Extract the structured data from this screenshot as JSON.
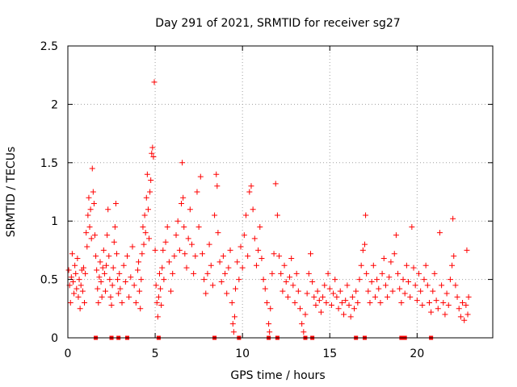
{
  "chart_data": {
    "type": "scatter",
    "title": "Day 291 of 2021, SRMTID for receiver sg27",
    "xlabel": "GPS time / hours",
    "ylabel": "SRMTID / TECUs",
    "xlim": [
      0,
      24.333
    ],
    "ylim": [
      0,
      2.5
    ],
    "x_ticks": [
      0,
      5,
      10,
      15,
      20
    ],
    "x_tick_labels": [
      "0",
      "5",
      "10",
      "15",
      "20"
    ],
    "y_ticks": [
      0,
      0.5,
      1,
      1.5,
      2,
      2.5
    ],
    "y_tick_labels": [
      "0",
      "0.5",
      "1",
      "1.5",
      "2",
      "2.5"
    ],
    "grid": true,
    "series": [
      {
        "name": "SRMTID",
        "marker": "plus",
        "color": "#ff0000",
        "points": [
          [
            0.05,
            0.58
          ],
          [
            0.1,
            0.45
          ],
          [
            0.15,
            0.3
          ],
          [
            0.2,
            0.52
          ],
          [
            0.25,
            0.72
          ],
          [
            0.3,
            0.48
          ],
          [
            0.35,
            0.38
          ],
          [
            0.4,
            0.62
          ],
          [
            0.45,
            0.55
          ],
          [
            0.5,
            0.42
          ],
          [
            0.55,
            0.68
          ],
          [
            0.6,
            0.35
          ],
          [
            0.65,
            0.5
          ],
          [
            0.7,
            0.25
          ],
          [
            0.75,
            0.45
          ],
          [
            0.8,
            0.58
          ],
          [
            0.85,
            0.4
          ],
          [
            0.9,
            0.6
          ],
          [
            0.95,
            0.3
          ],
          [
            1.0,
            0.55
          ],
          [
            1.05,
            0.9
          ],
          [
            1.1,
            0.78
          ],
          [
            1.15,
            1.05
          ],
          [
            1.2,
            1.2
          ],
          [
            1.25,
            0.95
          ],
          [
            1.3,
            1.1
          ],
          [
            1.35,
            0.85
          ],
          [
            1.4,
            1.45
          ],
          [
            1.45,
            1.25
          ],
          [
            1.5,
            1.15
          ],
          [
            1.55,
            0.88
          ],
          [
            1.6,
            0.7
          ],
          [
            1.65,
            0.58
          ],
          [
            1.7,
            0.42
          ],
          [
            1.75,
            0.3
          ],
          [
            1.8,
            0.52
          ],
          [
            1.85,
            0.65
          ],
          [
            1.9,
            0.48
          ],
          [
            1.95,
            0.35
          ],
          [
            2.0,
            0.6
          ],
          [
            2.05,
            0.75
          ],
          [
            2.1,
            0.55
          ],
          [
            2.15,
            0.4
          ],
          [
            2.2,
            0.62
          ],
          [
            2.25,
            0.88
          ],
          [
            2.3,
            1.1
          ],
          [
            2.35,
            0.7
          ],
          [
            2.4,
            0.5
          ],
          [
            2.45,
            0.35
          ],
          [
            2.5,
            0.28
          ],
          [
            2.55,
            0.45
          ],
          [
            2.6,
            0.6
          ],
          [
            2.65,
            0.82
          ],
          [
            2.7,
            0.95
          ],
          [
            2.75,
            1.15
          ],
          [
            2.8,
            0.72
          ],
          [
            2.85,
            0.5
          ],
          [
            2.9,
            0.38
          ],
          [
            2.95,
            0.55
          ],
          [
            3.0,
            0.42
          ],
          [
            3.1,
            0.3
          ],
          [
            3.2,
            0.62
          ],
          [
            3.3,
            0.48
          ],
          [
            3.4,
            0.7
          ],
          [
            3.5,
            0.35
          ],
          [
            3.6,
            0.52
          ],
          [
            3.7,
            0.78
          ],
          [
            3.8,
            0.45
          ],
          [
            3.9,
            0.3
          ],
          [
            4.0,
            0.58
          ],
          [
            4.05,
            0.65
          ],
          [
            4.1,
            0.4
          ],
          [
            4.15,
            0.25
          ],
          [
            4.2,
            0.5
          ],
          [
            4.25,
            0.72
          ],
          [
            4.3,
            0.95
          ],
          [
            4.35,
            0.8
          ],
          [
            4.4,
            1.05
          ],
          [
            4.45,
            0.9
          ],
          [
            4.5,
            1.2
          ],
          [
            4.55,
            1.4
          ],
          [
            4.6,
            1.1
          ],
          [
            4.65,
            0.85
          ],
          [
            4.7,
            1.25
          ],
          [
            4.75,
            1.35
          ],
          [
            4.8,
            1.58
          ],
          [
            4.85,
            1.63
          ],
          [
            4.9,
            1.55
          ],
          [
            4.95,
            2.19
          ],
          [
            5.0,
            0.75
          ],
          [
            5.05,
            0.45
          ],
          [
            5.1,
            0.3
          ],
          [
            5.15,
            0.18
          ],
          [
            5.2,
            0.35
          ],
          [
            5.25,
            0.55
          ],
          [
            5.3,
            0.42
          ],
          [
            5.35,
            0.28
          ],
          [
            5.4,
            0.6
          ],
          [
            5.45,
            0.75
          ],
          [
            5.5,
            0.5
          ],
          [
            5.6,
            0.82
          ],
          [
            5.7,
            0.95
          ],
          [
            5.8,
            0.65
          ],
          [
            5.9,
            0.4
          ],
          [
            6.0,
            0.55
          ],
          [
            6.1,
            0.7
          ],
          [
            6.2,
            0.88
          ],
          [
            6.3,
            1.0
          ],
          [
            6.4,
            0.75
          ],
          [
            6.5,
            1.15
          ],
          [
            6.55,
            1.5
          ],
          [
            6.6,
            1.2
          ],
          [
            6.65,
            0.95
          ],
          [
            6.7,
            0.72
          ],
          [
            6.8,
            0.6
          ],
          [
            6.9,
            0.85
          ],
          [
            7.0,
            1.1
          ],
          [
            7.1,
            0.8
          ],
          [
            7.2,
            0.55
          ],
          [
            7.3,
            0.7
          ],
          [
            7.4,
            1.25
          ],
          [
            7.5,
            0.95
          ],
          [
            7.6,
            1.38
          ],
          [
            7.7,
            0.72
          ],
          [
            7.8,
            0.5
          ],
          [
            7.9,
            0.38
          ],
          [
            8.0,
            0.55
          ],
          [
            8.1,
            0.8
          ],
          [
            8.2,
            0.62
          ],
          [
            8.3,
            0.45
          ],
          [
            8.4,
            1.05
          ],
          [
            8.5,
            1.4
          ],
          [
            8.55,
            1.3
          ],
          [
            8.6,
            0.9
          ],
          [
            8.7,
            0.65
          ],
          [
            8.8,
            0.48
          ],
          [
            8.9,
            0.7
          ],
          [
            9.0,
            0.55
          ],
          [
            9.1,
            0.38
          ],
          [
            9.2,
            0.6
          ],
          [
            9.3,
            0.75
          ],
          [
            9.4,
            0.3
          ],
          [
            9.45,
            0.12
          ],
          [
            9.5,
            0.05
          ],
          [
            9.55,
            0.18
          ],
          [
            9.6,
            0.42
          ],
          [
            9.7,
            0.65
          ],
          [
            9.8,
            0.5
          ],
          [
            9.9,
            0.78
          ],
          [
            10.0,
            0.6
          ],
          [
            10.1,
            0.88
          ],
          [
            10.2,
            1.05
          ],
          [
            10.3,
            0.7
          ],
          [
            10.4,
            1.25
          ],
          [
            10.5,
            1.3
          ],
          [
            10.6,
            1.1
          ],
          [
            10.7,
            0.85
          ],
          [
            10.8,
            0.62
          ],
          [
            10.9,
            0.75
          ],
          [
            11.0,
            0.95
          ],
          [
            11.1,
            0.68
          ],
          [
            11.2,
            0.5
          ],
          [
            11.3,
            0.42
          ],
          [
            11.4,
            0.3
          ],
          [
            11.5,
            0.12
          ],
          [
            11.55,
            0.05
          ],
          [
            11.6,
            0.25
          ],
          [
            11.7,
            0.55
          ],
          [
            11.8,
            0.72
          ],
          [
            11.9,
            1.32
          ],
          [
            12.0,
            1.05
          ],
          [
            12.1,
            0.7
          ],
          [
            12.2,
            0.55
          ],
          [
            12.3,
            0.4
          ],
          [
            12.4,
            0.62
          ],
          [
            12.5,
            0.48
          ],
          [
            12.6,
            0.35
          ],
          [
            12.7,
            0.52
          ],
          [
            12.8,
            0.68
          ],
          [
            12.9,
            0.45
          ],
          [
            13.0,
            0.3
          ],
          [
            13.1,
            0.55
          ],
          [
            13.2,
            0.4
          ],
          [
            13.3,
            0.25
          ],
          [
            13.4,
            0.12
          ],
          [
            13.5,
            0.05
          ],
          [
            13.6,
            0.2
          ],
          [
            13.7,
            0.38
          ],
          [
            13.8,
            0.55
          ],
          [
            13.9,
            0.72
          ],
          [
            14.0,
            0.48
          ],
          [
            14.1,
            0.35
          ],
          [
            14.2,
            0.28
          ],
          [
            14.3,
            0.4
          ],
          [
            14.4,
            0.32
          ],
          [
            14.5,
            0.22
          ],
          [
            14.6,
            0.35
          ],
          [
            14.7,
            0.45
          ],
          [
            14.8,
            0.3
          ],
          [
            14.9,
            0.55
          ],
          [
            15.0,
            0.42
          ],
          [
            15.1,
            0.28
          ],
          [
            15.2,
            0.38
          ],
          [
            15.3,
            0.5
          ],
          [
            15.4,
            0.35
          ],
          [
            15.5,
            0.25
          ],
          [
            15.6,
            0.4
          ],
          [
            15.7,
            0.3
          ],
          [
            15.8,
            0.2
          ],
          [
            15.9,
            0.32
          ],
          [
            16.0,
            0.45
          ],
          [
            16.1,
            0.28
          ],
          [
            16.2,
            0.18
          ],
          [
            16.3,
            0.35
          ],
          [
            16.4,
            0.25
          ],
          [
            16.5,
            0.4
          ],
          [
            16.6,
            0.3
          ],
          [
            16.7,
            0.5
          ],
          [
            16.8,
            0.62
          ],
          [
            16.9,
            0.75
          ],
          [
            17.0,
            0.8
          ],
          [
            17.05,
            1.05
          ],
          [
            17.1,
            0.55
          ],
          [
            17.2,
            0.4
          ],
          [
            17.3,
            0.3
          ],
          [
            17.4,
            0.48
          ],
          [
            17.5,
            0.62
          ],
          [
            17.6,
            0.35
          ],
          [
            17.7,
            0.5
          ],
          [
            17.8,
            0.42
          ],
          [
            17.9,
            0.3
          ],
          [
            18.0,
            0.55
          ],
          [
            18.1,
            0.68
          ],
          [
            18.2,
            0.45
          ],
          [
            18.3,
            0.35
          ],
          [
            18.4,
            0.52
          ],
          [
            18.5,
            0.65
          ],
          [
            18.6,
            0.4
          ],
          [
            18.7,
            0.72
          ],
          [
            18.8,
            0.88
          ],
          [
            18.9,
            0.55
          ],
          [
            19.0,
            0.42
          ],
          [
            19.1,
            0.3
          ],
          [
            19.2,
            0.5
          ],
          [
            19.3,
            0.38
          ],
          [
            19.4,
            0.62
          ],
          [
            19.5,
            0.48
          ],
          [
            19.6,
            0.35
          ],
          [
            19.7,
            0.95
          ],
          [
            19.8,
            0.6
          ],
          [
            19.9,
            0.45
          ],
          [
            20.0,
            0.32
          ],
          [
            20.1,
            0.55
          ],
          [
            20.2,
            0.4
          ],
          [
            20.3,
            0.28
          ],
          [
            20.4,
            0.5
          ],
          [
            20.5,
            0.62
          ],
          [
            20.6,
            0.45
          ],
          [
            20.7,
            0.3
          ],
          [
            20.8,
            0.22
          ],
          [
            20.9,
            0.4
          ],
          [
            21.0,
            0.55
          ],
          [
            21.1,
            0.32
          ],
          [
            21.2,
            0.25
          ],
          [
            21.3,
            0.9
          ],
          [
            21.4,
            0.45
          ],
          [
            21.5,
            0.3
          ],
          [
            21.6,
            0.2
          ],
          [
            21.7,
            0.38
          ],
          [
            21.8,
            0.28
          ],
          [
            21.9,
            0.5
          ],
          [
            22.0,
            0.62
          ],
          [
            22.05,
            1.02
          ],
          [
            22.1,
            0.7
          ],
          [
            22.2,
            0.45
          ],
          [
            22.3,
            0.35
          ],
          [
            22.4,
            0.25
          ],
          [
            22.5,
            0.18
          ],
          [
            22.6,
            0.3
          ],
          [
            22.7,
            0.15
          ],
          [
            22.8,
            0.28
          ],
          [
            22.85,
            0.75
          ],
          [
            22.9,
            0.2
          ],
          [
            22.95,
            0.35
          ]
        ]
      }
    ],
    "markers_at_zero": [
      1.6,
      2.5,
      2.9,
      3.4,
      5.2,
      8.4,
      9.8,
      11.5,
      12.0,
      13.6,
      14.0,
      16.5,
      17.0,
      19.1,
      19.3,
      20.8
    ]
  }
}
